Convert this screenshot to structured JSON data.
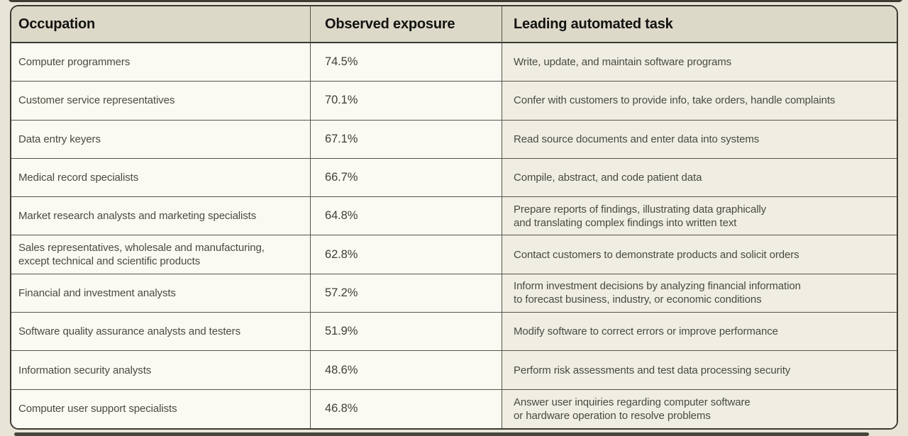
{
  "colors": {
    "page_background": "#e8e5d7",
    "card_background": "#fafaf2",
    "task_column_background": "#f0eee3",
    "header_background": "#dcd9c9",
    "outer_border": "#3a3a31",
    "inner_border": "#55544a",
    "header_text": "#121210",
    "body_text": "#4a4a41"
  },
  "table": {
    "columns": [
      {
        "key": "occupation",
        "label": "Occupation"
      },
      {
        "key": "exposure",
        "label": "Observed exposure"
      },
      {
        "key": "task",
        "label": "Leading automated task"
      }
    ],
    "rows": [
      {
        "occupation": "Computer programmers",
        "exposure": "74.5%",
        "task": "Write, update, and maintain software programs"
      },
      {
        "occupation": "Customer service representatives",
        "exposure": "70.1%",
        "task": "Confer with customers to provide info, take orders, handle complaints"
      },
      {
        "occupation": "Data entry keyers",
        "exposure": "67.1%",
        "task": "Read source documents and enter data into systems"
      },
      {
        "occupation": "Medical record specialists",
        "exposure": "66.7%",
        "task": "Compile, abstract, and code patient data"
      },
      {
        "occupation": "Market research analysts and marketing specialists",
        "exposure": "64.8%",
        "task": "Prepare reports of findings, illustrating data graphically\nand translating complex findings into written text"
      },
      {
        "occupation": "Sales representatives, wholesale and manufacturing,\nexcept technical and scientific products",
        "exposure": "62.8%",
        "task": "Contact customers to demonstrate products and solicit orders"
      },
      {
        "occupation": "Financial and investment analysts",
        "exposure": "57.2%",
        "task": "Inform investment decisions by analyzing financial information\nto forecast business, industry, or economic conditions"
      },
      {
        "occupation": "Software quality assurance analysts and testers",
        "exposure": "51.9%",
        "task": "Modify software to correct errors or improve performance"
      },
      {
        "occupation": "Information security analysts",
        "exposure": "48.6%",
        "task": "Perform risk assessments and test data processing security"
      },
      {
        "occupation": "Computer user support specialists",
        "exposure": "46.8%",
        "task": "Answer user inquiries regarding computer software\nor hardware operation to resolve problems"
      }
    ]
  },
  "chart_data": {
    "type": "table",
    "title": "",
    "columns": [
      "Occupation",
      "Observed exposure",
      "Leading automated task"
    ],
    "categories": [
      "Computer programmers",
      "Customer service representatives",
      "Data entry keyers",
      "Medical record specialists",
      "Market research analysts and marketing specialists",
      "Sales representatives, wholesale and manufacturing, except technical and scientific products",
      "Financial and investment analysts",
      "Software quality assurance analysts and testers",
      "Information security analysts",
      "Computer user support specialists"
    ],
    "series": [
      {
        "name": "Observed exposure (%)",
        "values": [
          74.5,
          70.1,
          67.1,
          66.7,
          64.8,
          62.8,
          57.2,
          51.9,
          48.6,
          46.8
        ]
      }
    ],
    "leading_automated_tasks": [
      "Write, update, and maintain software programs",
      "Confer with customers to provide info, take orders, handle complaints",
      "Read source documents and enter data into systems",
      "Compile, abstract, and code patient data",
      "Prepare reports of findings, illustrating data graphically and translating complex findings into written text",
      "Contact customers to demonstrate products and solicit orders",
      "Inform investment decisions by analyzing financial information to forecast business, industry, or economic conditions",
      "Modify software to correct errors or improve performance",
      "Perform risk assessments and test data processing security",
      "Answer user inquiries regarding computer software or hardware operation to resolve problems"
    ]
  }
}
